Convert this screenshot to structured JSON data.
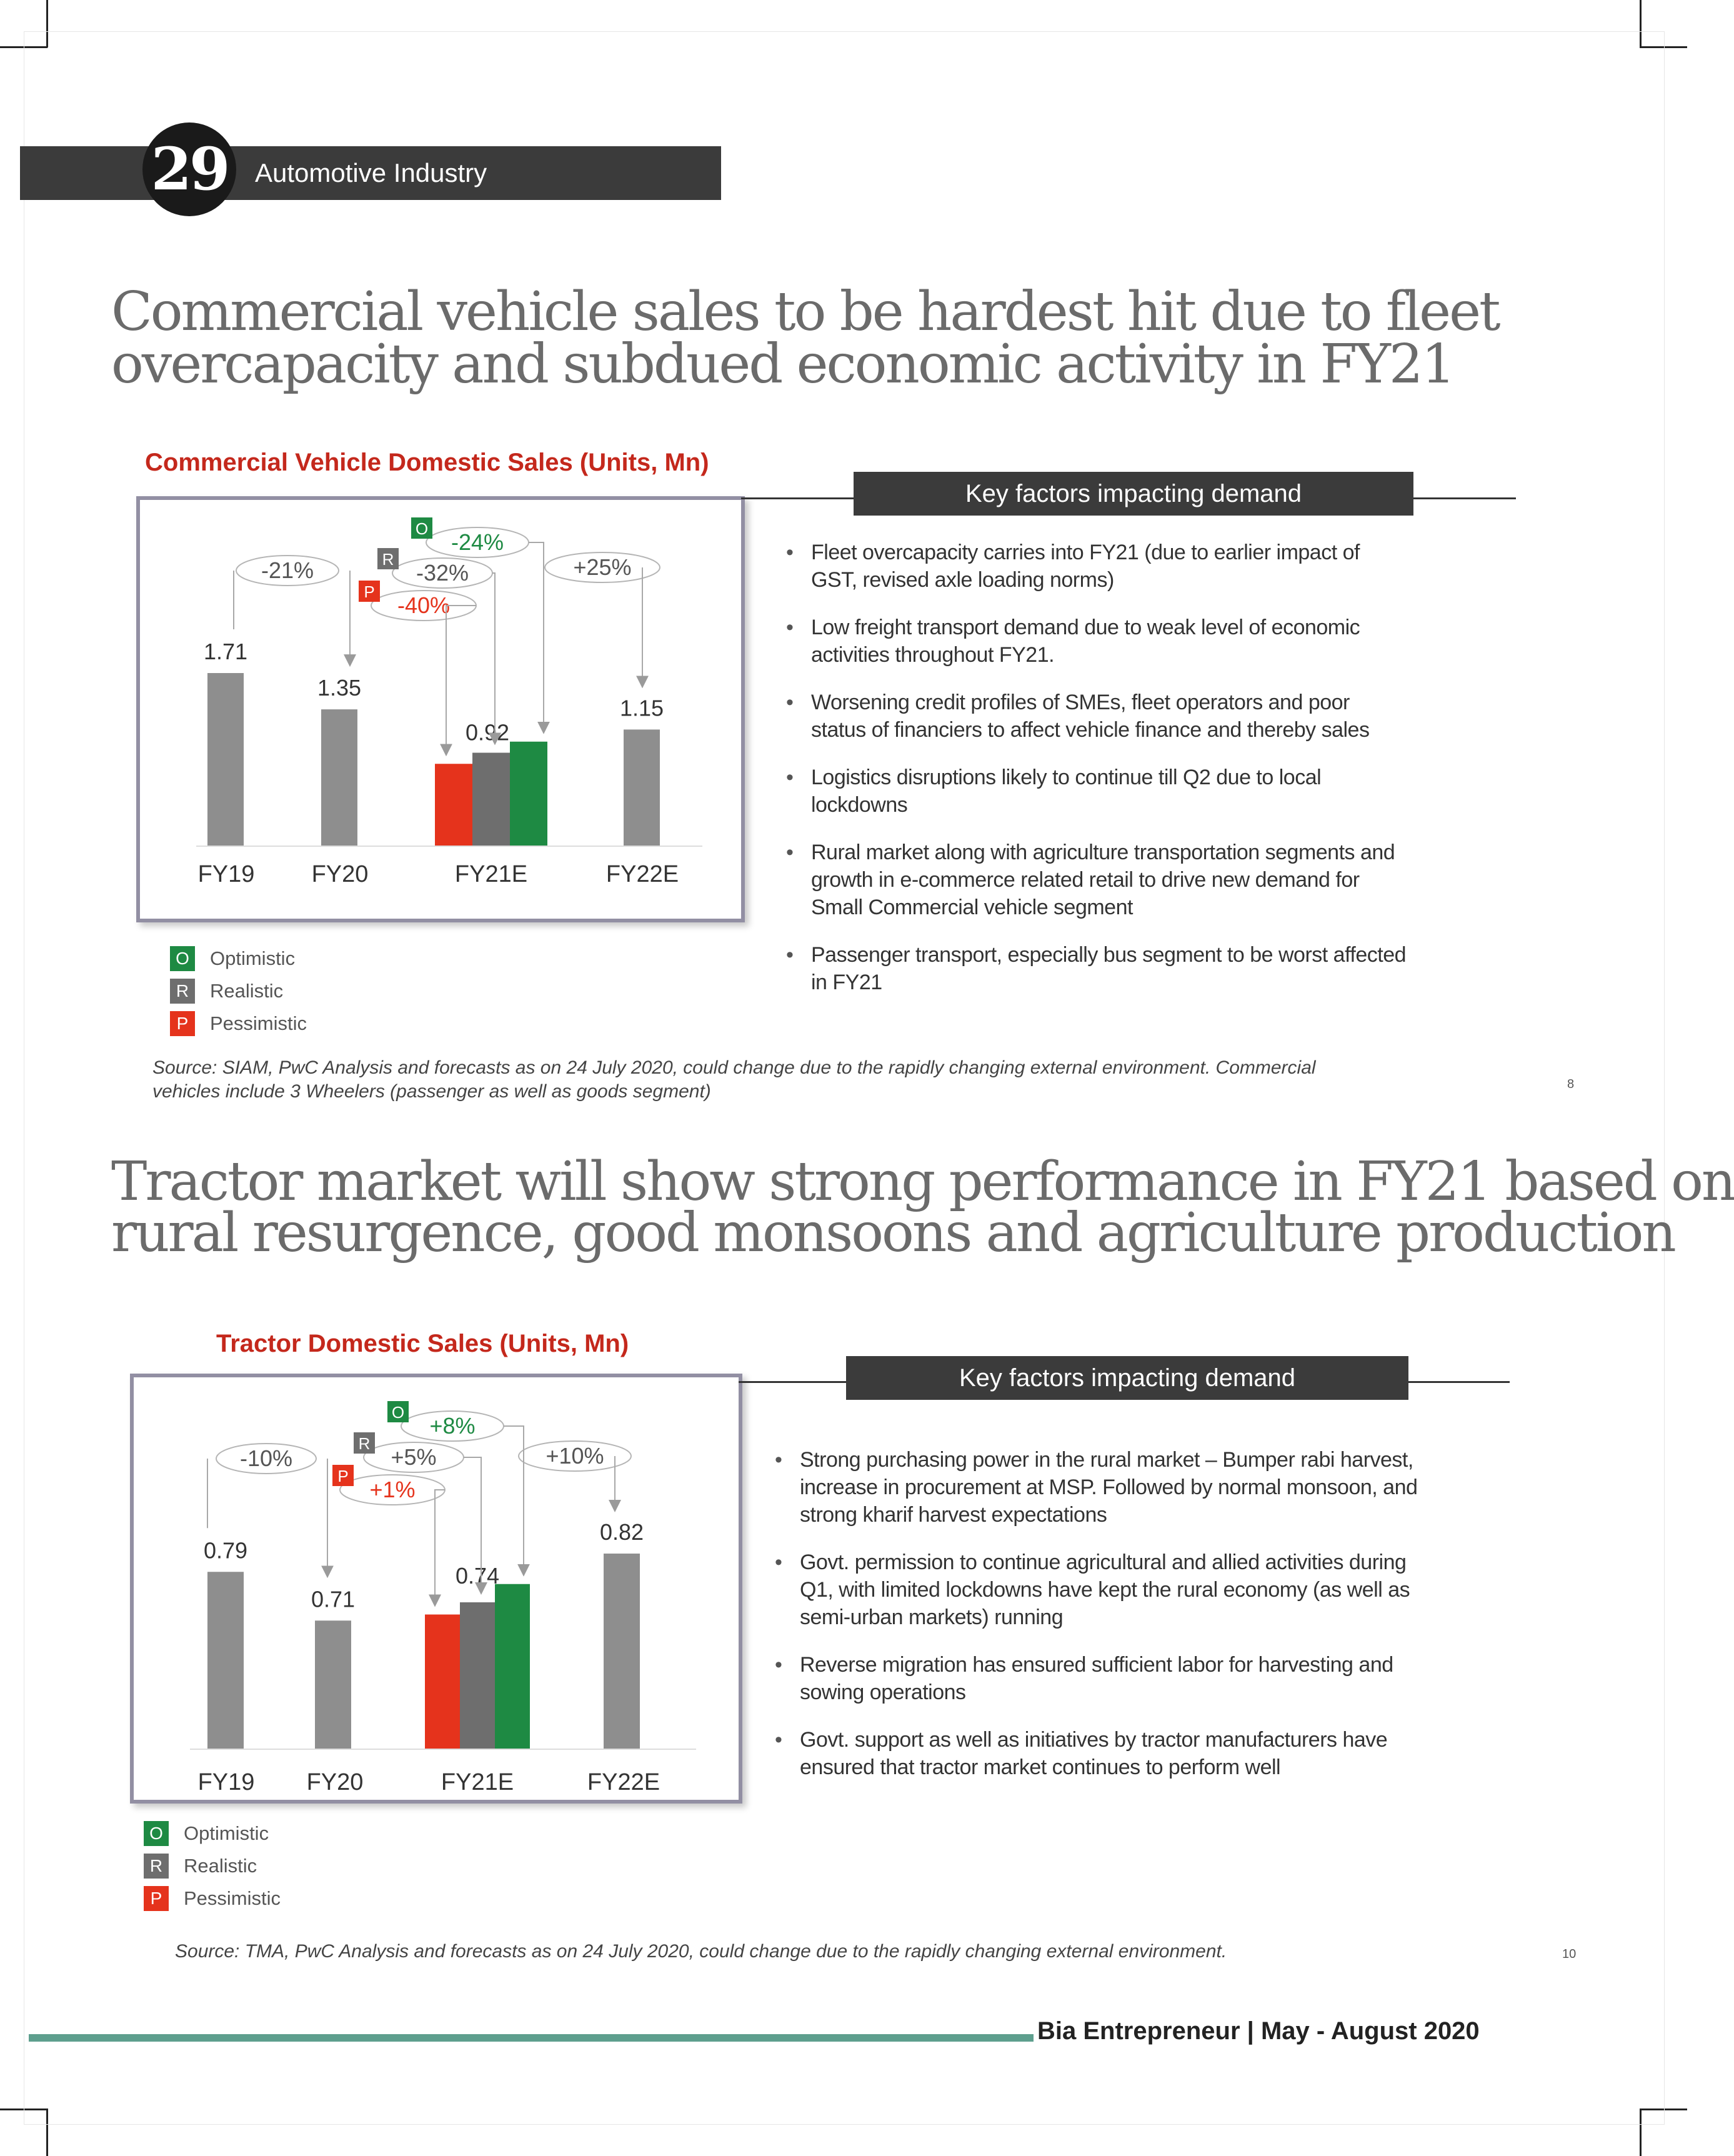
{
  "header": {
    "page_number": "29",
    "section": "Automotive Industry"
  },
  "colors": {
    "optimistic": "#1e8a43",
    "realistic": "#6e6e6e",
    "pessimistic": "#e5331c",
    "bar": "#8e8e8e",
    "title_red": "#c4281c"
  },
  "section1": {
    "headline_line1": "Commercial vehicle sales to be hardest hit due to fleet",
    "headline_line2": "overcapacity and subdued economic activity in FY21",
    "chart_title": "Commercial  Vehicle  Domestic  Sales  (Units, Mn)",
    "key_factors_title": "Key factors impacting  demand",
    "bullets": [
      [
        "Fleet overcapacity carries into FY21 (due to earlier impact of",
        "GST, revised axle loading norms)"
      ],
      [
        "Low freight transport demand due to weak level of economic",
        "activities throughout FY21."
      ],
      [
        "Worsening credit profiles of SMEs, fleet operators and poor",
        "status of financiers to affect vehicle finance and thereby sales"
      ],
      [
        "Logistics disruptions likely to continue till Q2 due to local",
        "lockdowns"
      ],
      [
        "Rural market along with agriculture transportation segments and",
        "growth in e-commerce related retail to drive new demand for",
        "Small Commercial vehicle segment"
      ],
      [
        "Passenger transport, especially bus segment to be worst affected",
        "in FY21"
      ]
    ],
    "source_line1": "Source: SIAM, PwC Analysis and forecasts as on 24 July 2020, could change due to the rapidly changing external environment. Commercial",
    "source_line2": "vehicles include 3 Wheelers (passenger as well as goods segment)",
    "slide_number": "8"
  },
  "section2": {
    "headline_line1": "Tractor market will show strong performance in FY21 based on",
    "headline_line2": "rural resurgence, good monsoons and agriculture production",
    "chart_title": "Tractor Domestic  Sales  (Units, Mn)",
    "key_factors_title": "Key factors impacting  demand",
    "bullets": [
      [
        "Strong purchasing power in the rural market – Bumper rabi harvest,",
        "increase in procurement at MSP. Followed by normal monsoon, and",
        "strong kharif harvest expectations"
      ],
      [
        "Govt. permission to continue agricultural and allied activities during",
        "Q1, with limited lockdowns have kept the rural economy (as well as",
        "semi-urban markets) running"
      ],
      [
        "Reverse migration has ensured sufficient labor for harvesting and",
        "sowing operations"
      ],
      [
        "Govt. support as well as initiatives by tractor manufacturers have",
        "ensured that tractor market continues to perform well"
      ]
    ],
    "source": "Source: TMA, PwC Analysis and forecasts as on 24 July 2020, could change due to the rapidly changing external environment.",
    "slide_number": "10"
  },
  "legend": {
    "optimistic": {
      "letter": "O",
      "label": "Optimistic"
    },
    "realistic": {
      "letter": "R",
      "label": "Realistic"
    },
    "pessimistic": {
      "letter": "P",
      "label": "Pessimistic"
    }
  },
  "footer": {
    "text": "Bia Entrepreneur | May - August 2020"
  },
  "chart_data": [
    {
      "type": "bar",
      "title": "Commercial  Vehicle  Domestic  Sales  (Units, Mn)",
      "categories": [
        "FY19",
        "FY20",
        "FY21E",
        "FY22E"
      ],
      "values": [
        1.71,
        1.35,
        null,
        1.15
      ],
      "value_labels": [
        "1.71",
        "1.35",
        "0.92",
        "1.15"
      ],
      "fy21_scenarios": [
        {
          "name": "Pessimistic",
          "letter": "P",
          "value": 0.81,
          "change": "-40%"
        },
        {
          "name": "Realistic",
          "letter": "R",
          "value": 0.92,
          "change": "-32%"
        },
        {
          "name": "Optimistic",
          "letter": "O",
          "value": 1.03,
          "change": "-24%"
        }
      ],
      "growth_labels": {
        "fy20": "-21%",
        "fy22": "+25%"
      },
      "ylim": [
        0,
        1.71
      ]
    },
    {
      "type": "bar",
      "title": "Tractor Domestic  Sales  (Units, Mn)",
      "categories": [
        "FY19",
        "FY20",
        "FY21E",
        "FY22E"
      ],
      "values": [
        0.79,
        0.71,
        null,
        0.82
      ],
      "value_labels": [
        "0.79",
        "0.71",
        "0.74",
        "0.82"
      ],
      "fy21_scenarios": [
        {
          "name": "Pessimistic",
          "letter": "P",
          "value": 0.72,
          "change": "+1%"
        },
        {
          "name": "Realistic",
          "letter": "R",
          "value": 0.74,
          "change": "+5%"
        },
        {
          "name": "Optimistic",
          "letter": "O",
          "value": 0.77,
          "change": "+8%"
        }
      ],
      "growth_labels": {
        "fy20": "-10%",
        "fy22": "+10%"
      },
      "ylim": [
        0.5,
        0.82
      ]
    }
  ]
}
